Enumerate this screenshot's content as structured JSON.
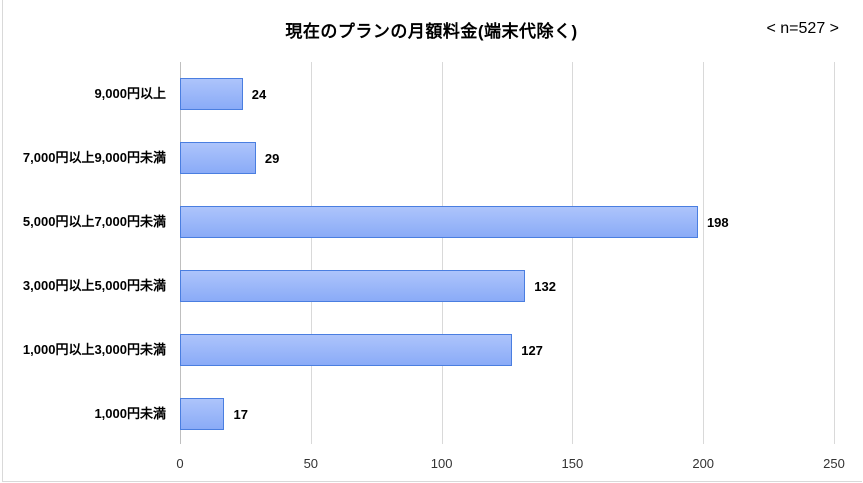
{
  "chart_data": {
    "type": "bar",
    "orientation": "horizontal",
    "title": "現在のプランの月額料金(端末代除く)",
    "annotation": "< n=527 >",
    "categories": [
      "9,000円以上",
      "7,000円以上9,000円未満",
      "5,000円以上7,000円未満",
      "3,000円以上5,000円未満",
      "1,000円以上3,000円未満",
      "1,000円未満"
    ],
    "values": [
      24,
      29,
      198,
      132,
      127,
      17
    ],
    "xlabel": "",
    "ylabel": "",
    "xlim": [
      0,
      250
    ],
    "xticks": [
      "0",
      "50",
      "100",
      "150",
      "200",
      "250"
    ],
    "grid": true,
    "legend": null,
    "bar_color": "#8aabf7",
    "bar_border_color": "#4a7ee0"
  },
  "labels": {
    "title": "現在のプランの月額料金(端末代除く)",
    "n": "< n=527 >"
  }
}
